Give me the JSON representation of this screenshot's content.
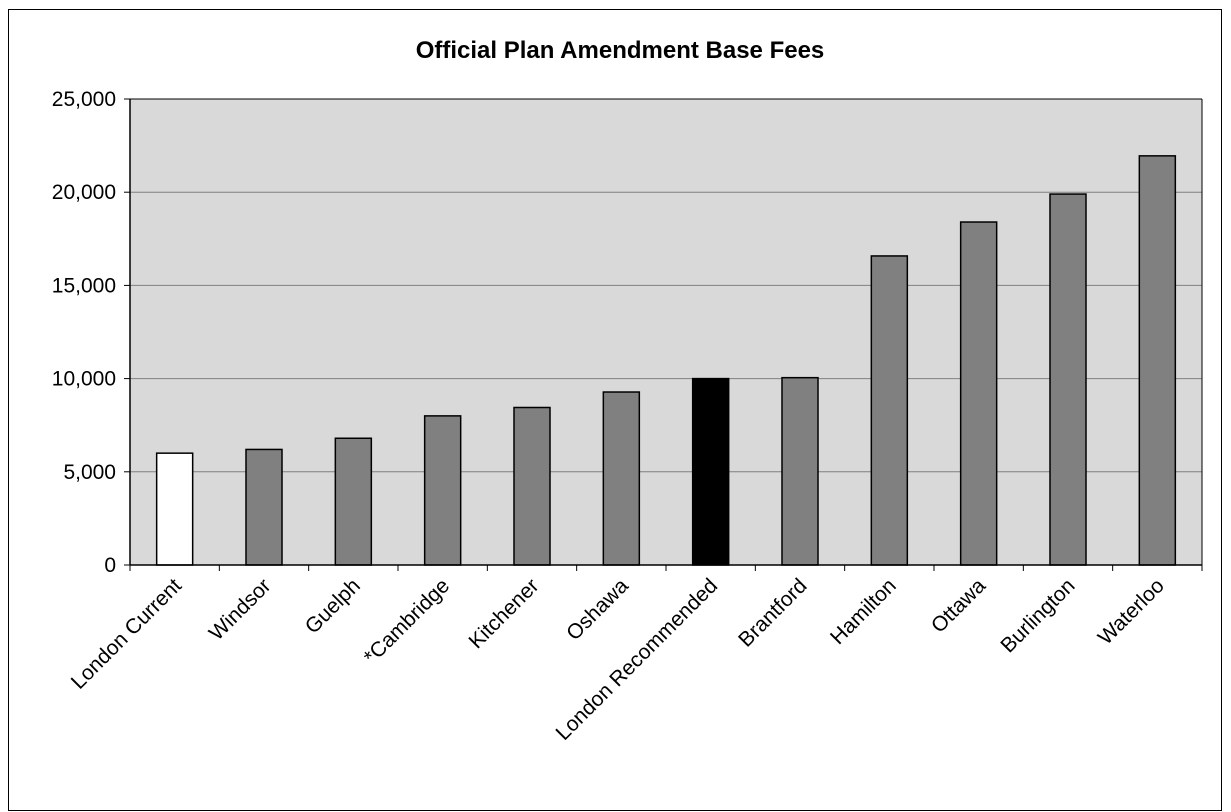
{
  "chart_data": {
    "type": "bar",
    "title": "Official Plan Amendment Base Fees",
    "xlabel": "",
    "ylabel": "",
    "categories": [
      "London Current",
      "Windsor",
      "Guelph",
      "*Cambridge",
      "Kitchener",
      "Oshawa",
      "London Recommended",
      "Brantford",
      "Hamilton",
      "Ottawa",
      "Burlington",
      "Waterloo"
    ],
    "values": [
      6000,
      6200,
      6800,
      8000,
      8450,
      9280,
      10000,
      10050,
      16580,
      18400,
      19900,
      21950
    ],
    "bar_colors": [
      "#ffffff",
      "#808080",
      "#808080",
      "#808080",
      "#808080",
      "#808080",
      "#000000",
      "#808080",
      "#808080",
      "#808080",
      "#808080",
      "#808080"
    ],
    "ylim": [
      0,
      25000
    ],
    "yticks": [
      0,
      5000,
      10000,
      15000,
      20000,
      25000
    ],
    "ytick_labels": [
      "0",
      "5,000",
      "10,000",
      "15,000",
      "20,000",
      "25,000"
    ],
    "grid": true,
    "plot_background": "#d9d9d9",
    "legend": "none"
  }
}
